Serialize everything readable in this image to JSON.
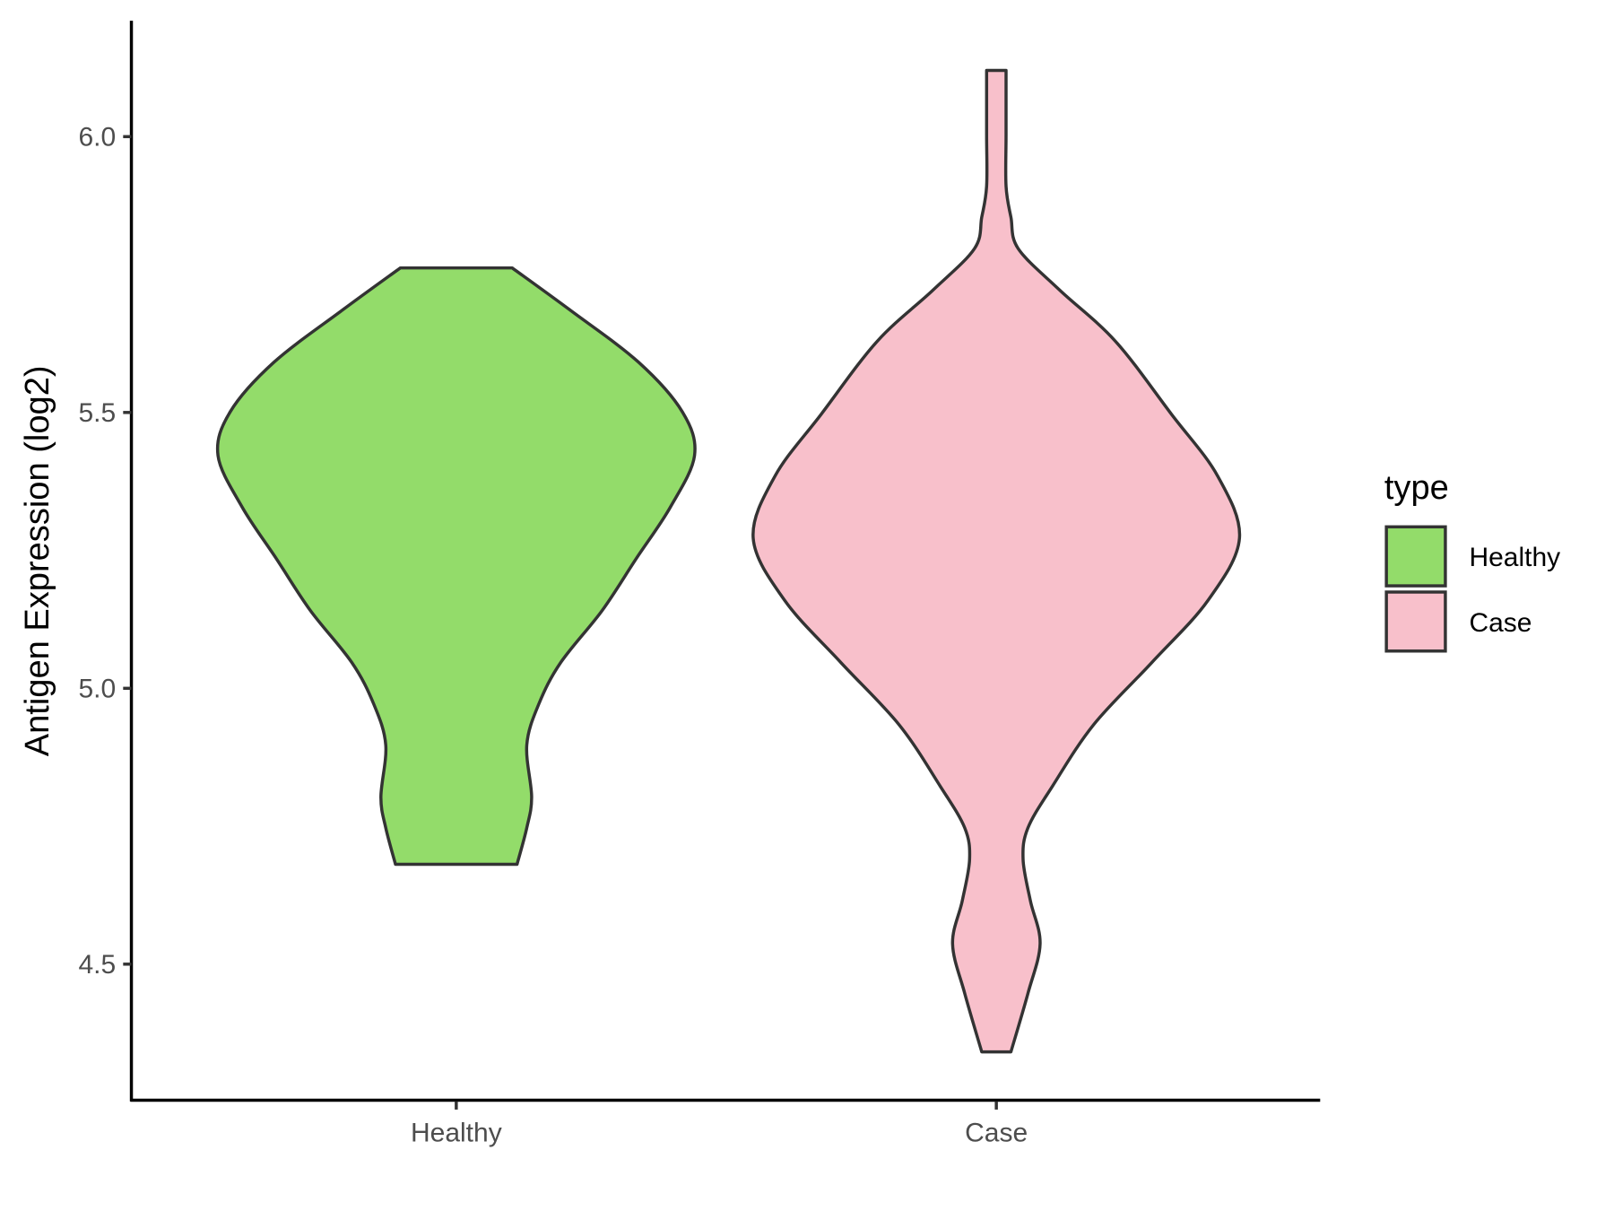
{
  "chart_data": {
    "type": "violin",
    "title": "",
    "xlabel": "",
    "ylabel": "Antigen Expression (log2)",
    "categories": [
      "Healthy",
      "Case"
    ],
    "ylim": [
      4.27,
      6.2
    ],
    "yticks": [
      "4.5",
      "5.0",
      "5.5",
      "6.0"
    ],
    "ytick_values": [
      4.5,
      5.0,
      5.5,
      6.0
    ],
    "grid": false,
    "legend": {
      "title": "type",
      "placement": "right",
      "entries": [
        "Healthy",
        "Case"
      ]
    },
    "colors": {
      "Healthy": "#93dc6a",
      "Case": "#f8c0cb",
      "outline": "#333333"
    },
    "series": [
      {
        "name": "Healthy",
        "density_profile": [
          [
            5.762,
            0.23
          ],
          [
            5.685,
            0.47
          ],
          [
            5.591,
            0.75
          ],
          [
            5.501,
            0.93
          ],
          [
            5.422,
            0.98
          ],
          [
            5.328,
            0.88
          ],
          [
            5.235,
            0.74
          ],
          [
            5.141,
            0.6
          ],
          [
            5.047,
            0.43
          ],
          [
            4.972,
            0.34
          ],
          [
            4.897,
            0.29
          ],
          [
            4.803,
            0.31
          ],
          [
            4.747,
            0.29
          ],
          [
            4.681,
            0.25
          ]
        ]
      },
      {
        "name": "Case",
        "density_profile": [
          [
            6.12,
            0.04
          ],
          [
            6.004,
            0.04
          ],
          [
            5.91,
            0.04
          ],
          [
            5.854,
            0.06
          ],
          [
            5.797,
            0.09
          ],
          [
            5.722,
            0.26
          ],
          [
            5.629,
            0.49
          ],
          [
            5.497,
            0.72
          ],
          [
            5.385,
            0.91
          ],
          [
            5.272,
            1.0
          ],
          [
            5.159,
            0.87
          ],
          [
            5.047,
            0.64
          ],
          [
            4.934,
            0.4
          ],
          [
            4.822,
            0.23
          ],
          [
            4.747,
            0.13
          ],
          [
            4.69,
            0.11
          ],
          [
            4.615,
            0.14
          ],
          [
            4.537,
            0.18
          ],
          [
            4.447,
            0.13
          ],
          [
            4.341,
            0.06
          ]
        ]
      }
    ]
  }
}
